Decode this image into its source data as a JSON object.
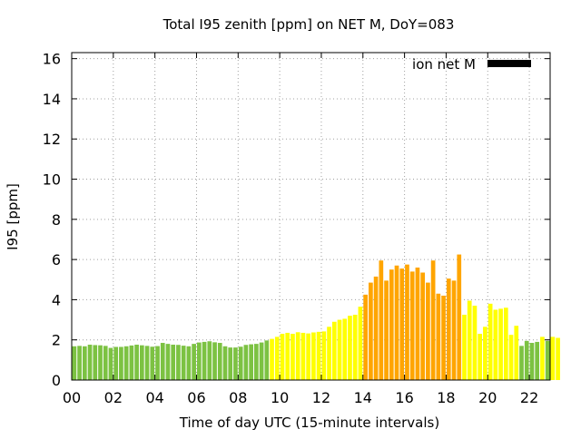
{
  "chart_data": {
    "type": "bar",
    "title": "Total I95 zenith [ppm] on NET M, DoY=083",
    "xlabel": "Time of day UTC (15-minute intervals)",
    "ylabel": "I95 [ppm]",
    "xlim": [
      0,
      23
    ],
    "ylim": [
      0,
      16.3
    ],
    "grid": true,
    "legend_position": "top-right",
    "legend": {
      "label": "ion net M",
      "color": "#000000"
    },
    "x_ticks": [
      "00",
      "02",
      "04",
      "06",
      "08",
      "10",
      "12",
      "14",
      "16",
      "18",
      "20",
      "22"
    ],
    "y_ticks": [
      "0",
      "2",
      "4",
      "6",
      "8",
      "10",
      "12",
      "14",
      "16"
    ],
    "colors": {
      "low": "#7cc242",
      "medium": "#ffff00",
      "high": "#ffa500"
    },
    "thresholds": {
      "medium_from": 2.0,
      "high_from": 4.0
    },
    "bin_hours": 0.25,
    "values": [
      1.68,
      1.7,
      1.68,
      1.76,
      1.74,
      1.73,
      1.7,
      1.6,
      1.65,
      1.65,
      1.68,
      1.72,
      1.76,
      1.73,
      1.7,
      1.66,
      1.69,
      1.85,
      1.8,
      1.76,
      1.75,
      1.71,
      1.68,
      1.8,
      1.87,
      1.9,
      1.93,
      1.88,
      1.85,
      1.68,
      1.62,
      1.62,
      1.66,
      1.75,
      1.78,
      1.8,
      1.87,
      1.97,
      2.05,
      2.15,
      2.3,
      2.35,
      2.3,
      2.38,
      2.35,
      2.32,
      2.37,
      2.4,
      2.42,
      2.65,
      2.9,
      3.0,
      3.05,
      3.2,
      3.25,
      3.65,
      4.25,
      4.85,
      5.15,
      5.95,
      4.95,
      5.5,
      5.7,
      5.55,
      5.75,
      5.4,
      5.6,
      5.35,
      4.85,
      5.95,
      4.3,
      4.2,
      5.05,
      4.95,
      6.25,
      3.25,
      3.95,
      3.7,
      2.3,
      2.65,
      3.8,
      3.5,
      3.55,
      3.6,
      2.25,
      2.7,
      1.7,
      1.95,
      1.85,
      1.9,
      2.15,
      1.95,
      2.15,
      2.1
    ]
  }
}
